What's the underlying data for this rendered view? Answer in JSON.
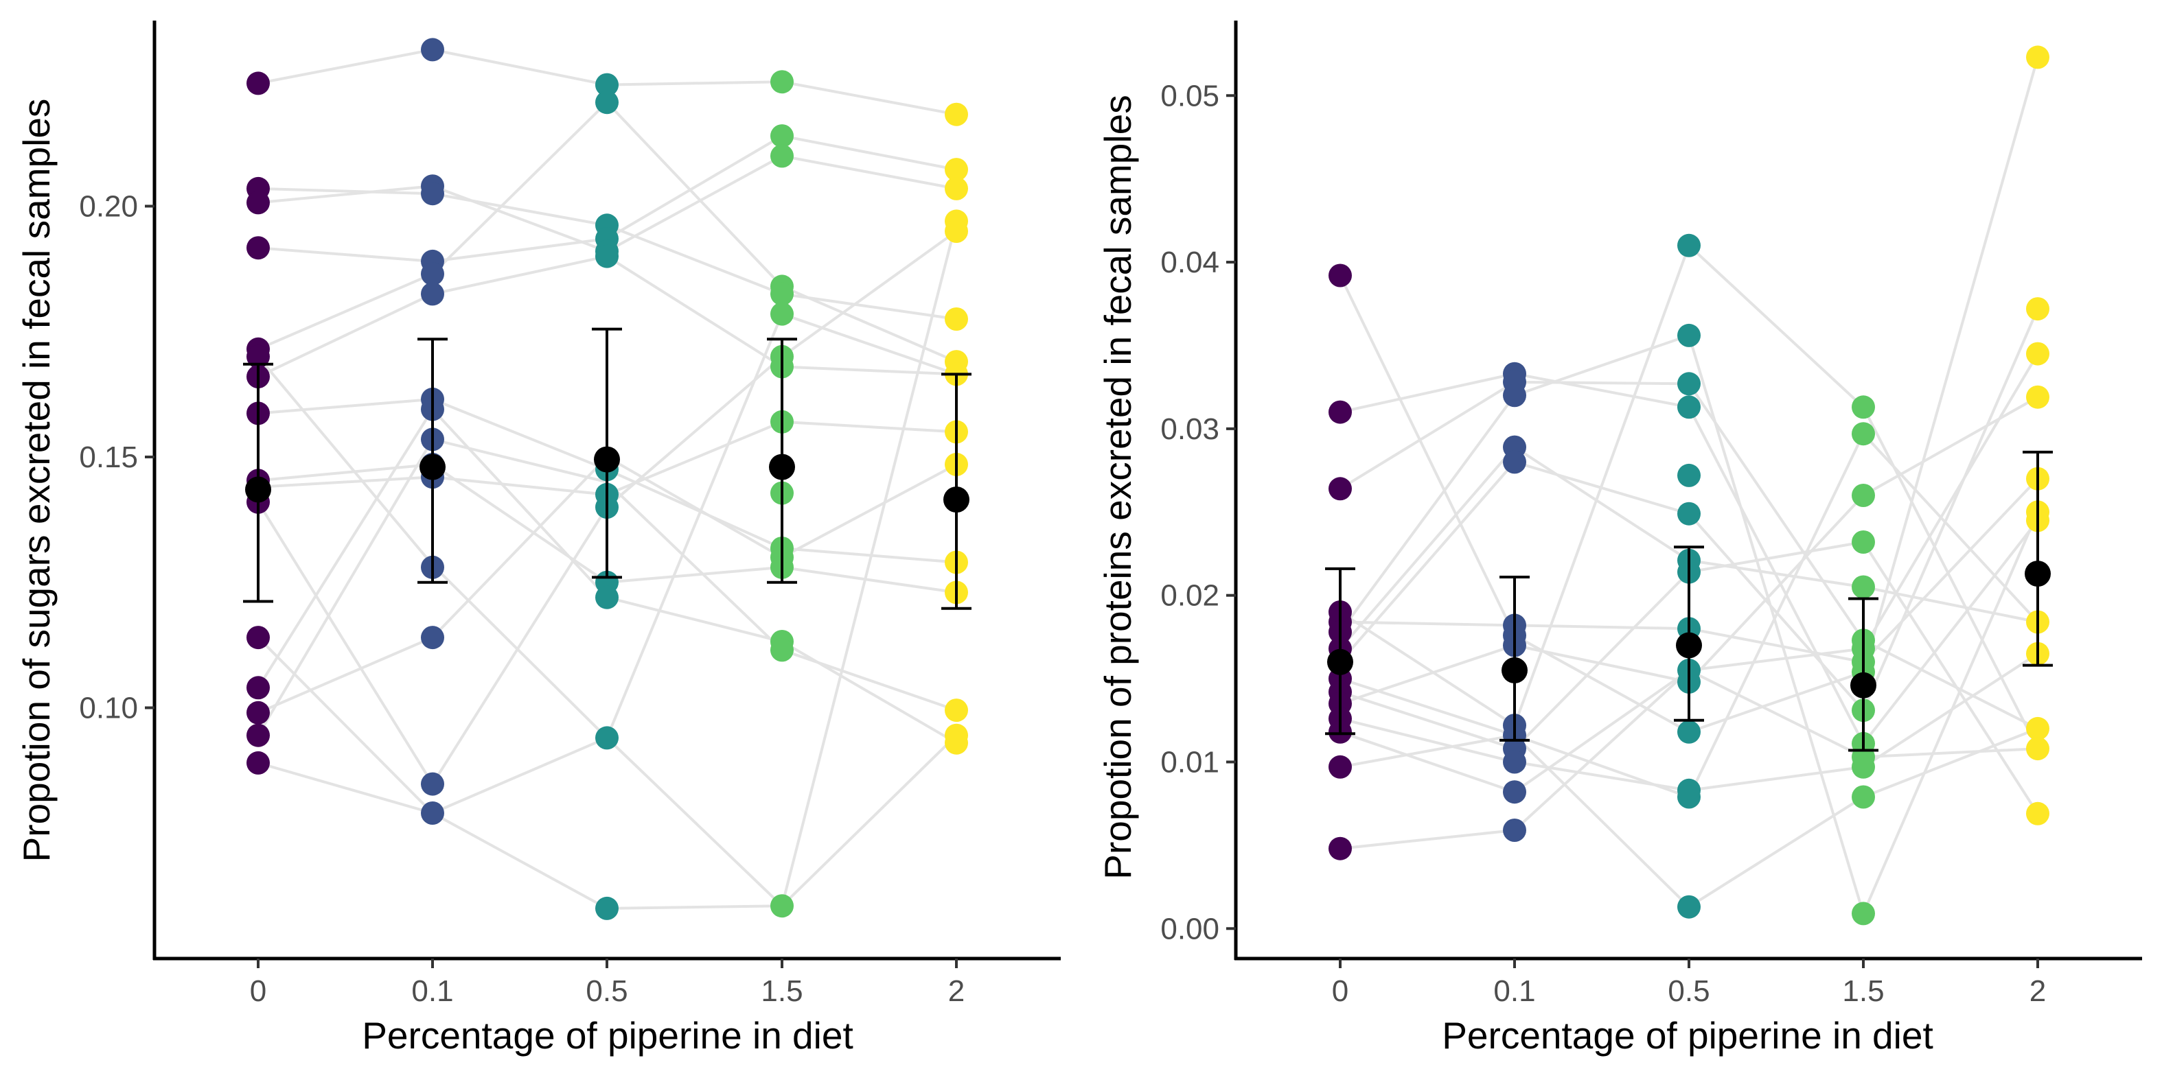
{
  "chart_data": [
    {
      "type": "scatter",
      "title": "",
      "xlabel": "Percentage of piperine in diet",
      "ylabel": "Propotion of sugars excreted in fecal samples",
      "categories": [
        "0",
        "0.1",
        "0.5",
        "1.5",
        "2"
      ],
      "ylim": [
        0.05,
        0.237
      ],
      "yticks": [
        "0.10",
        "0.15",
        "0.20"
      ],
      "ytick_values": [
        0.1,
        0.15,
        0.2
      ],
      "grid": false,
      "legend": "none",
      "colors": [
        "#440154",
        "#3b528b",
        "#21908c",
        "#5dc863",
        "#fde725"
      ],
      "points": [
        [
          0.2245,
          0.2035,
          0.2007,
          0.1917,
          0.1715,
          0.17,
          0.166,
          0.1587,
          0.1453,
          0.144,
          0.141,
          0.114,
          0.104,
          0.099,
          0.0945,
          0.089
        ],
        [
          0.2312,
          0.204,
          0.2025,
          0.189,
          0.1865,
          0.1825,
          0.1615,
          0.1595,
          0.1535,
          0.1485,
          0.146,
          0.128,
          0.114,
          0.0848,
          0.079
        ],
        [
          0.2242,
          0.2207,
          0.1962,
          0.1935,
          0.191,
          0.19,
          0.1475,
          0.1425,
          0.14,
          0.125,
          0.122,
          0.094,
          0.06
        ],
        [
          0.2248,
          0.214,
          0.21,
          0.184,
          0.1825,
          0.1785,
          0.17,
          0.168,
          0.157,
          0.1428,
          0.1318,
          0.13,
          0.128,
          0.1132,
          0.1115,
          0.0605
        ],
        [
          0.2183,
          0.2073,
          0.2035,
          0.197,
          0.195,
          0.1775,
          0.169,
          0.1665,
          0.155,
          0.1485,
          0.129,
          0.123,
          0.0995,
          0.0945,
          0.093
        ]
      ],
      "means": [
        0.1435,
        0.148,
        0.1495,
        0.148,
        0.1415
      ],
      "error_bars": [
        [
          0.1212,
          0.1685
        ],
        [
          0.125,
          0.1735
        ],
        [
          0.126,
          0.1755
        ],
        [
          0.125,
          0.1735
        ],
        [
          0.1198,
          0.1665
        ]
      ],
      "connecting_lines": [
        [
          0.2245,
          0.2312,
          0.2242,
          0.2248,
          0.2183
        ],
        [
          0.2035,
          0.2025,
          0.1962,
          0.1825,
          0.1775
        ],
        [
          0.2007,
          0.204,
          0.191,
          0.21,
          0.2035
        ],
        [
          0.1917,
          0.189,
          0.1935,
          0.214,
          0.2073
        ],
        [
          0.1715,
          0.1865,
          0.2207,
          0.184,
          0.169
        ],
        [
          0.17,
          0.1285,
          0.094,
          0.0605,
          0.197
        ],
        [
          0.166,
          0.1825,
          0.19,
          0.168,
          0.1665
        ],
        [
          0.1587,
          0.1615,
          0.1475,
          0.1318,
          0.129
        ],
        [
          0.1453,
          0.1485,
          0.125,
          0.128,
          0.123
        ],
        [
          0.144,
          0.146,
          0.1425,
          0.157,
          0.155
        ],
        [
          0.141,
          0.0848,
          0.14,
          0.17,
          0.195
        ],
        [
          0.114,
          0.079,
          0.06,
          0.0605,
          0.0945
        ],
        [
          0.104,
          0.1595,
          0.122,
          0.1132,
          0.093
        ],
        [
          0.099,
          0.114,
          0.15,
          0.13,
          0.1485
        ],
        [
          0.0945,
          0.1535,
          0.145,
          0.1115,
          0.0995
        ],
        [
          0.089,
          0.079,
          0.094,
          0.1785,
          0.1665
        ]
      ]
    },
    {
      "type": "scatter",
      "title": "",
      "xlabel": "Percentage of piperine in diet",
      "ylabel": "Propotion of proteins excreted in fecal samples",
      "categories": [
        "0",
        "0.1",
        "0.5",
        "1.5",
        "2"
      ],
      "ylim": [
        -0.0018,
        0.0545
      ],
      "yticks": [
        "0.00",
        "0.01",
        "0.02",
        "0.03",
        "0.04",
        "0.05"
      ],
      "ytick_values": [
        0.0,
        0.01,
        0.02,
        0.03,
        0.04,
        0.05
      ],
      "grid": false,
      "legend": "none",
      "colors": [
        "#440154",
        "#3b528b",
        "#21908c",
        "#5dc863",
        "#fde725"
      ],
      "points": [
        [
          0.0392,
          0.031,
          0.0264,
          0.019,
          0.0184,
          0.0178,
          0.0168,
          0.016,
          0.015,
          0.0142,
          0.0135,
          0.0126,
          0.0118,
          0.0097,
          0.0048
        ],
        [
          0.0333,
          0.0328,
          0.032,
          0.0289,
          0.028,
          0.0182,
          0.0176,
          0.017,
          0.0122,
          0.0116,
          0.0108,
          0.01,
          0.0082,
          0.0059
        ],
        [
          0.041,
          0.0356,
          0.0327,
          0.0313,
          0.0272,
          0.0249,
          0.0221,
          0.0214,
          0.018,
          0.0155,
          0.0148,
          0.0118,
          0.0083,
          0.0079,
          0.0013
        ],
        [
          0.0313,
          0.0297,
          0.026,
          0.0232,
          0.0205,
          0.0173,
          0.0168,
          0.016,
          0.0154,
          0.0131,
          0.0111,
          0.0103,
          0.0097,
          0.0079,
          0.0009
        ],
        [
          0.0523,
          0.0372,
          0.0345,
          0.0319,
          0.027,
          0.025,
          0.0245,
          0.0184,
          0.0165,
          0.012,
          0.0108,
          0.0069
        ]
      ],
      "means": [
        0.016,
        0.0155,
        0.017,
        0.0146,
        0.0213
      ],
      "error_bars": [
        [
          0.0117,
          0.0216
        ],
        [
          0.0113,
          0.0211
        ],
        [
          0.0125,
          0.0229
        ],
        [
          0.0107,
          0.0198
        ],
        [
          0.0158,
          0.0286
        ]
      ],
      "connecting_lines": [
        [
          0.0392,
          0.0176,
          0.0118,
          0.0154,
          0.0523
        ],
        [
          0.031,
          0.0333,
          0.0313,
          0.0111,
          0.0245
        ],
        [
          0.0264,
          0.0328,
          0.0327,
          0.0173,
          0.012
        ],
        [
          0.019,
          0.0122,
          0.041,
          0.0313,
          0.0108
        ],
        [
          0.0184,
          0.0182,
          0.018,
          0.016,
          0.027
        ],
        [
          0.0178,
          0.032,
          0.0356,
          0.0009,
          0.025
        ],
        [
          0.0168,
          0.0289,
          0.0221,
          0.0205,
          0.0184
        ],
        [
          0.016,
          0.028,
          0.0249,
          0.0131,
          0.0372
        ],
        [
          0.015,
          0.0116,
          0.0079,
          0.0297,
          0.0184
        ],
        [
          0.0142,
          0.0108,
          0.0214,
          0.0232,
          0.0069
        ],
        [
          0.0135,
          0.017,
          0.0148,
          0.026,
          0.0319
        ],
        [
          0.0126,
          0.01,
          0.0083,
          0.0097,
          0.0165
        ],
        [
          0.0118,
          0.0082,
          0.0155,
          0.0168,
          0.0345
        ],
        [
          0.0097,
          0.0116,
          0.0013,
          0.0079,
          0.012
        ],
        [
          0.0048,
          0.0059,
          0.0155,
          0.0103,
          0.0108
        ]
      ]
    }
  ]
}
